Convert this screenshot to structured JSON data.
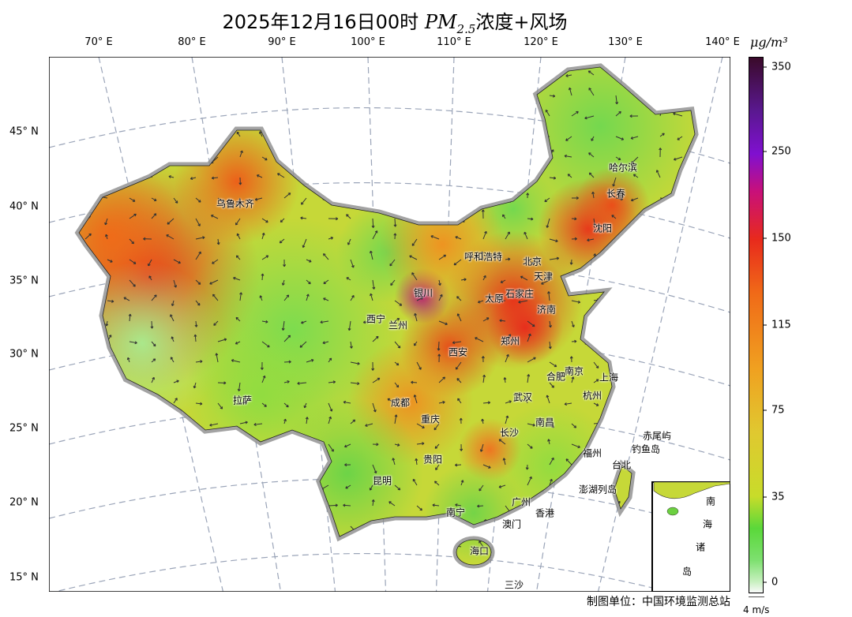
{
  "title": {
    "prefix": "2025年12月16日00时 ",
    "species": "PM",
    "subscript": "2.5",
    "suffix": "浓度+风场"
  },
  "lon_labels": [
    "70° E",
    "80° E",
    "90° E",
    "100° E",
    "110° E",
    "120° E",
    "130° E",
    "140° E"
  ],
  "lat_labels": [
    "45° N",
    "40° N",
    "35° N",
    "30° N",
    "25° N",
    "20° N",
    "15° N"
  ],
  "cities": [
    "乌鲁木齐",
    "哈尔滨",
    "长春",
    "沈阳",
    "呼和浩特",
    "北京",
    "天津",
    "银川",
    "太原",
    "石家庄",
    "西宁",
    "兰州",
    "济南",
    "郑州",
    "西安",
    "南京",
    "合肥",
    "上海",
    "杭州",
    "武汉",
    "成都",
    "拉萨",
    "重庆",
    "南昌",
    "长沙",
    "福州",
    "贵阳",
    "台北",
    "昆明",
    "澎湖列岛",
    "广州",
    "南宁",
    "香港",
    "澳门",
    "海口",
    "三沙",
    "赤尾屿",
    "钓鱼岛"
  ],
  "inset_labels": [
    "南",
    "海",
    "诸",
    "岛"
  ],
  "colorbar": {
    "unit": "μg/m³",
    "ticks": [
      "350",
      "250",
      "150",
      "115",
      "75",
      "35",
      "0"
    ],
    "colors": {
      "low": "#fafafa",
      "good": "#5ad83a",
      "moderate": "#e0c830",
      "high": "#f06a18",
      "severe": "#e82a1c",
      "extreme": "#3a0a2a"
    }
  },
  "wind_scale": "4 m/s",
  "credit": "制图单位：中国环境监测总站"
}
